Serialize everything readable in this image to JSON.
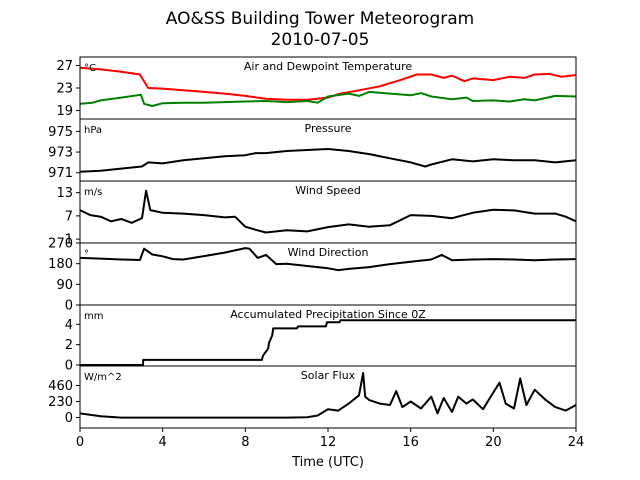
{
  "title": "AO&SS Building Tower Meteorogram",
  "subtitle": "2010-07-05",
  "chart_data": {
    "type": "line",
    "xlabel": "Time (UTC)",
    "xlim": [
      0,
      24
    ],
    "xticks": [
      0,
      4,
      8,
      12,
      16,
      20,
      24
    ],
    "panels": [
      {
        "title": "Air and Dewpoint Temperature",
        "unit": "°C",
        "ylim": [
          17.5,
          28.5
        ],
        "yticks": [
          19,
          23,
          27
        ],
        "series": [
          {
            "color": "#ff0000",
            "x": [
              0,
              1,
              2,
              2.9,
              3.3,
              4,
              5,
              6,
              7,
              8,
              9,
              10,
              11,
              12,
              12.6,
              13.5,
              14.5,
              15.5,
              16.3,
              17,
              17.6,
              18,
              18.6,
              19,
              20,
              20.8,
              21.5,
              22,
              22.7,
              23.3,
              24
            ],
            "y": [
              26.6,
              26.3,
              25.9,
              25.4,
              23.0,
              22.9,
              22.6,
              22.3,
              22.0,
              21.6,
              21.1,
              20.9,
              20.9,
              21.3,
              22.0,
              22.6,
              23.3,
              24.4,
              25.4,
              25.4,
              24.8,
              25.2,
              24.2,
              24.7,
              24.4,
              25.0,
              24.8,
              25.4,
              25.5,
              25.0,
              25.3
            ]
          },
          {
            "color": "#008000",
            "x": [
              0,
              0.6,
              1,
              2,
              2.95,
              3.1,
              3.5,
              4,
              5,
              6,
              7,
              8,
              9,
              10,
              11,
              11.5,
              12,
              13,
              13.5,
              14,
              15,
              16,
              16.5,
              17,
              18,
              18.7,
              19,
              20,
              20.8,
              21.5,
              22,
              23,
              24
            ],
            "y": [
              20.2,
              20.4,
              20.8,
              21.3,
              21.8,
              20.2,
              19.8,
              20.3,
              20.4,
              20.4,
              20.5,
              20.6,
              20.7,
              20.5,
              20.7,
              20.4,
              21.5,
              22.0,
              21.6,
              22.3,
              22.0,
              21.7,
              22.1,
              21.5,
              21.0,
              21.3,
              20.7,
              20.8,
              20.6,
              21.0,
              20.8,
              21.6,
              21.5
            ]
          }
        ]
      },
      {
        "title": "Pressure",
        "unit": "hPa",
        "ylim": [
          970.2,
          976.2
        ],
        "yticks": [
          971,
          973,
          975
        ],
        "series": [
          {
            "color": "#000000",
            "x": [
              0,
              1,
              2,
              3,
              3.3,
              4,
              5,
              6,
              7,
              8,
              8.5,
              9,
              10,
              11,
              12,
              13,
              14,
              15,
              16,
              16.7,
              17,
              18,
              19,
              20,
              21,
              22,
              23,
              24
            ],
            "y": [
              971.1,
              971.2,
              971.4,
              971.6,
              972.0,
              971.9,
              972.2,
              972.4,
              972.6,
              972.7,
              972.9,
              972.9,
              973.1,
              973.2,
              973.3,
              973.1,
              972.8,
              972.4,
              972.0,
              971.6,
              971.8,
              972.3,
              972.1,
              972.3,
              972.2,
              972.2,
              972.0,
              972.2
            ]
          }
        ]
      },
      {
        "title": "Wind Speed",
        "unit": "m/s",
        "ylim": [
          0,
          16
        ],
        "yticks": [
          1,
          7,
          13
        ],
        "series": [
          {
            "color": "#000000",
            "x": [
              0,
              0.5,
              1,
              1.5,
              2,
              2.5,
              3,
              3.2,
              3.4,
              4,
              5,
              6,
              7,
              7.5,
              8,
              8.5,
              9,
              10,
              11,
              12,
              13,
              14,
              15,
              16,
              17,
              18,
              19,
              20,
              21,
              22,
              23,
              23.5,
              24
            ],
            "y": [
              8.5,
              7.2,
              6.8,
              5.6,
              6.2,
              5.2,
              6.4,
              13.5,
              8.5,
              7.8,
              7.6,
              7.2,
              6.6,
              6.8,
              4.2,
              3.4,
              2.7,
              3.3,
              3.0,
              4.1,
              4.8,
              4.2,
              4.6,
              7.2,
              7.0,
              6.4,
              7.8,
              8.6,
              8.4,
              7.6,
              7.6,
              6.8,
              5.6
            ]
          }
        ]
      },
      {
        "title": "Wind Direction",
        "unit": "°",
        "ylim": [
          0,
          270
        ],
        "yticks": [
          0,
          90,
          180,
          270
        ],
        "series": [
          {
            "color": "#000000",
            "x": [
              0,
              1,
              2,
              2.9,
              3.1,
              3.5,
              4,
              4.5,
              5,
              6,
              7,
              8,
              8.2,
              8.6,
              9,
              9.5,
              10,
              11,
              12,
              12.5,
              13,
              14,
              15,
              16,
              17,
              17.5,
              18,
              19,
              20,
              21,
              22,
              23,
              24
            ],
            "y": [
              205,
              202,
              198,
              196,
              245,
              220,
              212,
              200,
              198,
              213,
              228,
              248,
              245,
              205,
              218,
              178,
              180,
              170,
              160,
              152,
              157,
              165,
              178,
              188,
              198,
              218,
              195,
              198,
              200,
              198,
              195,
              198,
              200
            ]
          }
        ]
      },
      {
        "title": "Accumulated Precipitation Since 0Z",
        "unit": "mm",
        "ylim": [
          -0.1,
          5.9
        ],
        "yticks": [
          0,
          2,
          4
        ],
        "series": [
          {
            "color": "#000000",
            "x": [
              0,
              3.05,
              3.06,
              8.8,
              8.85,
              9.1,
              9.15,
              9.3,
              9.35,
              10.5,
              10.55,
              11.9,
              11.95,
              12.55,
              12.6,
              24
            ],
            "y": [
              0,
              0,
              0.5,
              0.5,
              0.9,
              1.6,
              2.2,
              2.9,
              3.6,
              3.6,
              3.8,
              3.8,
              4.2,
              4.2,
              4.4,
              4.4
            ]
          }
        ]
      },
      {
        "title": "Solar Flux",
        "unit": "W/m^2",
        "ylim": [
          -150,
          740
        ],
        "yticks": [
          0,
          230,
          460
        ],
        "series": [
          {
            "color": "#000000",
            "x": [
              0,
              1,
              2,
              4,
              6,
              8,
              10,
              11,
              11.5,
              12,
              12.5,
              13,
              13.5,
              13.7,
              13.8,
              14,
              14.5,
              15,
              15.3,
              15.6,
              16,
              16.5,
              17,
              17.3,
              17.6,
              18,
              18.3,
              18.7,
              19,
              19.5,
              20,
              20.3,
              20.6,
              21,
              21.3,
              21.6,
              22,
              22.5,
              23,
              23.5,
              24
            ],
            "y": [
              60,
              20,
              0,
              0,
              0,
              0,
              0,
              5,
              30,
              120,
              100,
              200,
              320,
              640,
              300,
              250,
              200,
              180,
              380,
              150,
              230,
              130,
              300,
              60,
              280,
              80,
              300,
              200,
              260,
              120,
              360,
              500,
              200,
              130,
              560,
              180,
              400,
              260,
              150,
              100,
              180
            ]
          }
        ]
      }
    ]
  }
}
